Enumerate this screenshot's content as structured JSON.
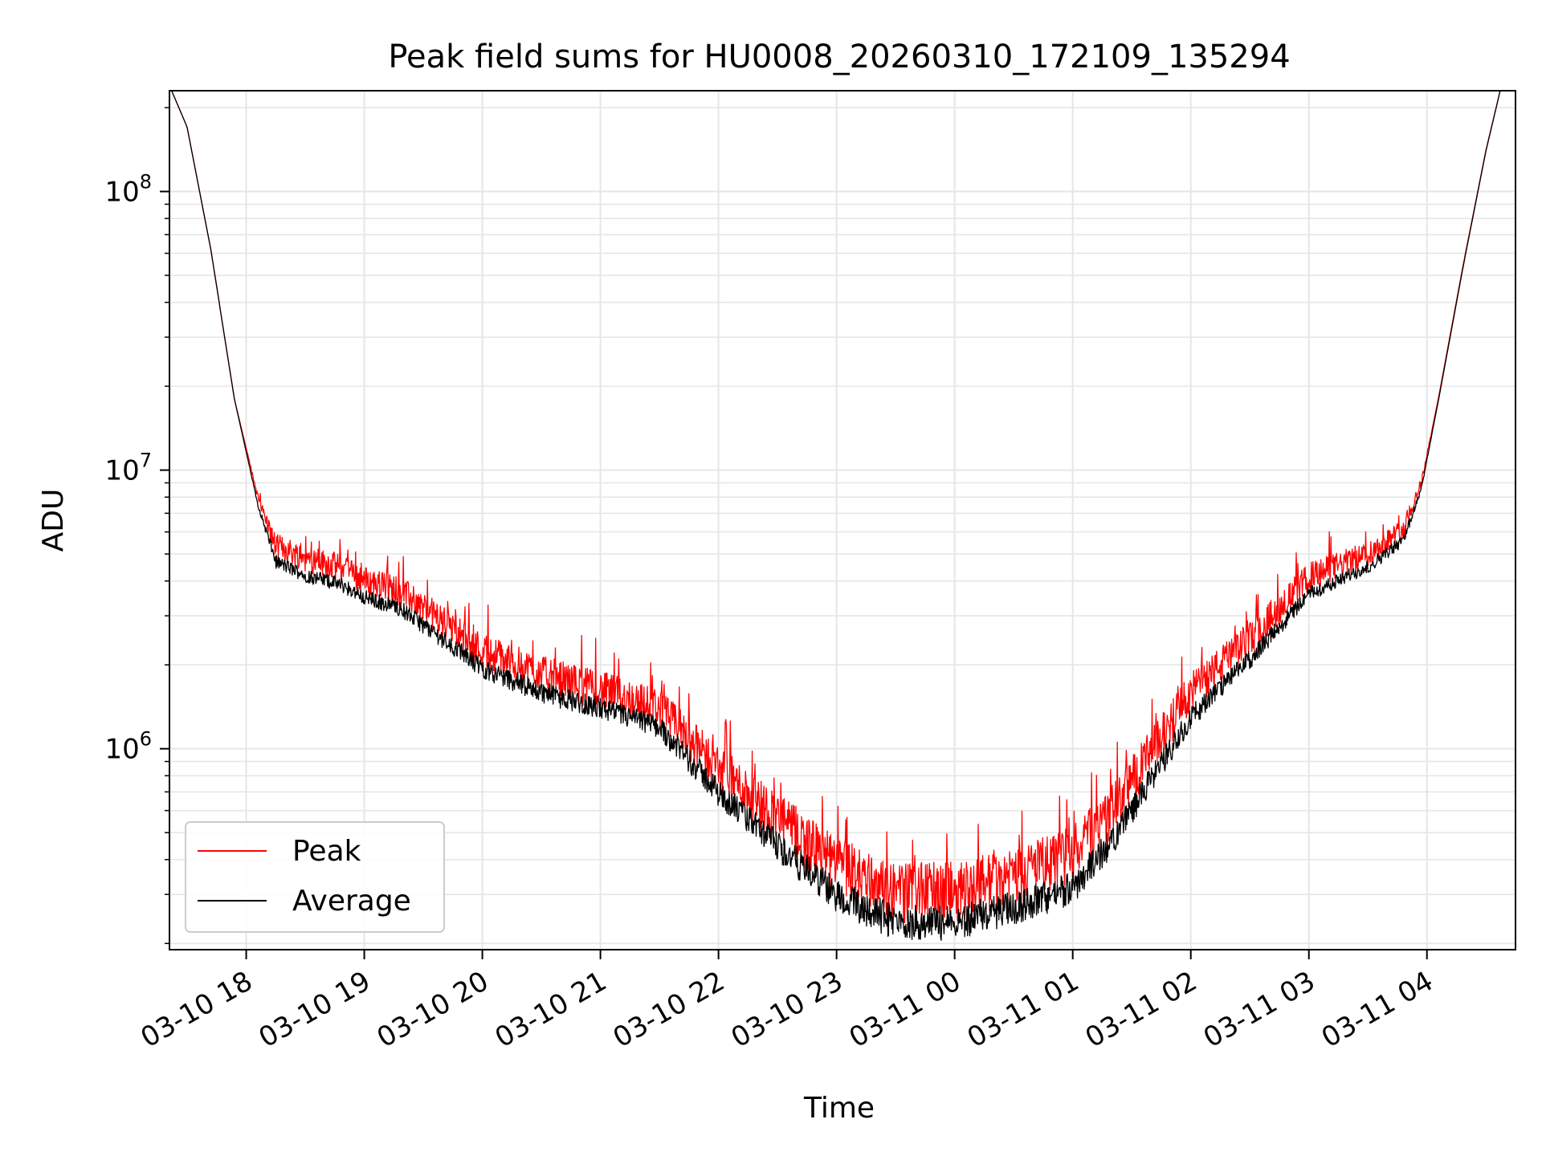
{
  "chart_data": {
    "type": "line",
    "title": "Peak field sums for HU0008_20260310_172109_135294",
    "xlabel": "Time",
    "ylabel": "ADU",
    "yscale": "log",
    "ylim": [
      190000,
      230000000
    ],
    "xlim_hours": [
      17.35,
      28.75
    ],
    "grid": true,
    "legend_position": "lower-left",
    "x_ticks": [
      {
        "hour": 18,
        "label": "03-10 18"
      },
      {
        "hour": 19,
        "label": "03-10 19"
      },
      {
        "hour": 20,
        "label": "03-10 20"
      },
      {
        "hour": 21,
        "label": "03-10 21"
      },
      {
        "hour": 22,
        "label": "03-10 22"
      },
      {
        "hour": 23,
        "label": "03-10 23"
      },
      {
        "hour": 24,
        "label": "03-11 00"
      },
      {
        "hour": 25,
        "label": "03-11 01"
      },
      {
        "hour": 26,
        "label": "03-11 02"
      },
      {
        "hour": 27,
        "label": "03-11 03"
      },
      {
        "hour": 28,
        "label": "03-11 04"
      }
    ],
    "y_ticks": [
      {
        "value": 1000000,
        "base": "10",
        "exp": "6"
      },
      {
        "value": 10000000,
        "base": "10",
        "exp": "7"
      },
      {
        "value": 100000000,
        "base": "10",
        "exp": "8"
      }
    ],
    "series": [
      {
        "name": "Peak",
        "color": "#ff0000",
        "noise_amp": 0.45
      },
      {
        "name": "Average",
        "color": "#000000",
        "noise_amp": 0.32
      }
    ],
    "average_profile": [
      [
        17.35,
        240000000
      ],
      [
        17.5,
        170000000
      ],
      [
        17.7,
        62000000
      ],
      [
        17.9,
        18000000
      ],
      [
        18.1,
        7500000
      ],
      [
        18.25,
        4700000
      ],
      [
        18.5,
        4200000
      ],
      [
        18.8,
        3900000
      ],
      [
        19.0,
        3500000
      ],
      [
        19.3,
        3200000
      ],
      [
        19.6,
        2600000
      ],
      [
        20.0,
        1950000
      ],
      [
        20.5,
        1600000
      ],
      [
        21.0,
        1400000
      ],
      [
        21.5,
        1200000
      ],
      [
        22.0,
        700000
      ],
      [
        22.5,
        450000
      ],
      [
        23.0,
        300000
      ],
      [
        23.5,
        240000
      ],
      [
        24.0,
        240000
      ],
      [
        24.5,
        270000
      ],
      [
        25.0,
        320000
      ],
      [
        25.3,
        450000
      ],
      [
        25.7,
        820000
      ],
      [
        26.0,
        1300000
      ],
      [
        26.5,
        2100000
      ],
      [
        27.0,
        3600000
      ],
      [
        27.5,
        4500000
      ],
      [
        27.8,
        5600000
      ],
      [
        27.95,
        8500000
      ],
      [
        28.1,
        18000000
      ],
      [
        28.3,
        52000000
      ],
      [
        28.5,
        140000000
      ],
      [
        28.65,
        260000000
      ]
    ],
    "peak_ratio_profile": [
      [
        17.35,
        1.0
      ],
      [
        17.9,
        1.0
      ],
      [
        18.1,
        1.06
      ],
      [
        18.3,
        1.14
      ],
      [
        21.5,
        1.15
      ],
      [
        22.5,
        1.25
      ],
      [
        24.0,
        1.28
      ],
      [
        25.0,
        1.3
      ],
      [
        26.5,
        1.18
      ],
      [
        27.8,
        1.08
      ],
      [
        28.1,
        1.02
      ],
      [
        28.75,
        1.0
      ]
    ]
  }
}
